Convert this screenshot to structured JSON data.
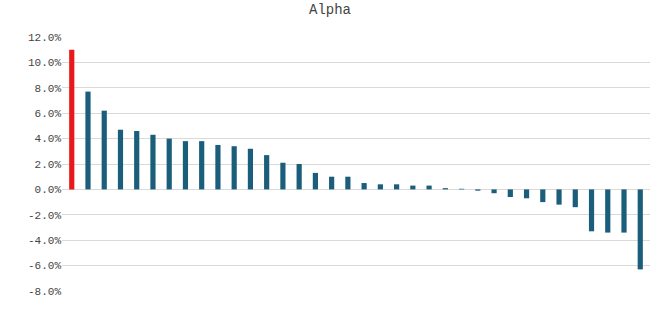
{
  "chart_data": {
    "type": "bar",
    "title": "Alpha",
    "categories": [
      null,
      null,
      null,
      null,
      null,
      null,
      null,
      null,
      null,
      null,
      null,
      null,
      null,
      null,
      null,
      null,
      null,
      null,
      null,
      null,
      null,
      null,
      null,
      null,
      null,
      null,
      null,
      null,
      null,
      null,
      null,
      null,
      null,
      null,
      null,
      null
    ],
    "values": [
      11.0,
      7.7,
      6.2,
      4.7,
      4.6,
      4.3,
      4.0,
      3.8,
      3.8,
      3.5,
      3.4,
      3.2,
      2.7,
      2.1,
      2.0,
      1.3,
      1.0,
      1.0,
      0.5,
      0.4,
      0.4,
      0.3,
      0.3,
      0.1,
      0.05,
      -0.1,
      -0.3,
      -0.6,
      -0.7,
      -1.0,
      -1.2,
      -1.4,
      -3.3,
      -3.4,
      -3.4,
      -6.3
    ],
    "colors": [
      "#e8191b",
      "#1b5e7b",
      "#1b5e7b",
      "#1b5e7b",
      "#1b5e7b",
      "#1b5e7b",
      "#1b5e7b",
      "#1b5e7b",
      "#1b5e7b",
      "#1b5e7b",
      "#1b5e7b",
      "#1b5e7b",
      "#1b5e7b",
      "#1b5e7b",
      "#1b5e7b",
      "#1b5e7b",
      "#1b5e7b",
      "#1b5e7b",
      "#1b5e7b",
      "#1b5e7b",
      "#1b5e7b",
      "#1b5e7b",
      "#1b5e7b",
      "#1b5e7b",
      "#1b5e7b",
      "#1b5e7b",
      "#1b5e7b",
      "#1b5e7b",
      "#1b5e7b",
      "#1b5e7b",
      "#1b5e7b",
      "#1b5e7b",
      "#1b5e7b",
      "#1b5e7b",
      "#1b5e7b",
      "#1b5e7b"
    ],
    "ylim": [
      -8,
      12
    ],
    "yticks": [
      {
        "value": -8,
        "label": "-8.0%"
      },
      {
        "value": -6,
        "label": "-6.0%"
      },
      {
        "value": -4,
        "label": "-4.0%"
      },
      {
        "value": -2,
        "label": "-2.0%"
      },
      {
        "value": 0,
        "label": "0.0%"
      },
      {
        "value": 2,
        "label": "2.0%"
      },
      {
        "value": 4,
        "label": "4.0%"
      },
      {
        "value": 6,
        "label": "6.0%"
      },
      {
        "value": 8,
        "label": "8.0%"
      },
      {
        "value": 10,
        "label": "10.0%"
      },
      {
        "value": 12,
        "label": "12.0%"
      }
    ],
    "grid": true,
    "tick_labels": "y"
  }
}
